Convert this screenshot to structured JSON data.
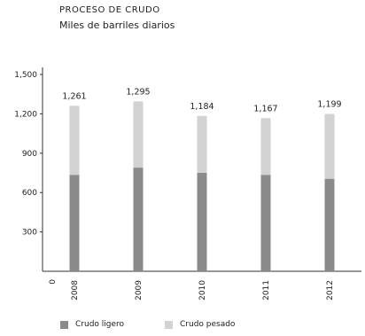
{
  "chart_data": {
    "type": "bar",
    "title": "PROCESO DE CRUDO",
    "subtitle": "Miles de barriles diarios",
    "categories": [
      "2008",
      "2009",
      "2010",
      "2011",
      "2012"
    ],
    "y_tick_labels": [
      "0",
      "300",
      "600",
      "900",
      "1,200",
      "1,500"
    ],
    "ylim": [
      0,
      1500
    ],
    "stacked": true,
    "totals_labels": [
      "1,261",
      "1,295",
      "1,184",
      "1,167",
      "1,199"
    ],
    "series": [
      {
        "name": "Crudo ligero",
        "values": [
          735,
          790,
          750,
          735,
          705
        ],
        "color": "#8a8a8a"
      },
      {
        "name": "Crudo pesado",
        "values": [
          526,
          505,
          434,
          432,
          494
        ],
        "color": "#d2d2d2"
      }
    ],
    "legend_position": "bottom",
    "grid": false
  }
}
